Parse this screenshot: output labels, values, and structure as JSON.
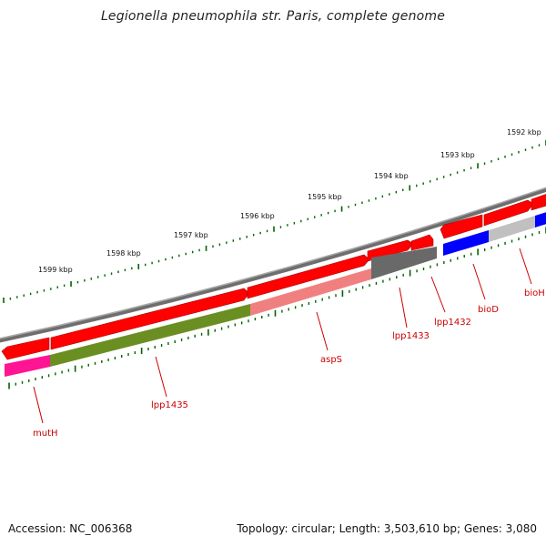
{
  "title": "Legionella pneumophila str. Paris, complete genome",
  "footer": {
    "accession": "Accession: NC_006368",
    "summary": "Topology: circular; Length: 3,503,610 bp; Genes: 3,080"
  },
  "scale_labels": [
    "1592 kbp",
    "1593 kbp",
    "1594 kbp",
    "1595 kbp",
    "1596 kbp",
    "1597 kbp",
    "1598 kbp",
    "1599 kbp"
  ],
  "gene_labels": [
    "bioH",
    "bioD",
    "lpp1432",
    "lpp1433",
    "aspS",
    "lpp1435",
    "mutH"
  ],
  "colors": {
    "backbone": "#808080",
    "cds": "#ff0000",
    "gene_colors": [
      "#ff1493",
      "#6b8e23",
      "#f08080",
      "#696969",
      "#0000ff",
      "#c0c0c0"
    ],
    "tick": "#006400",
    "label": "#cc0000"
  }
}
